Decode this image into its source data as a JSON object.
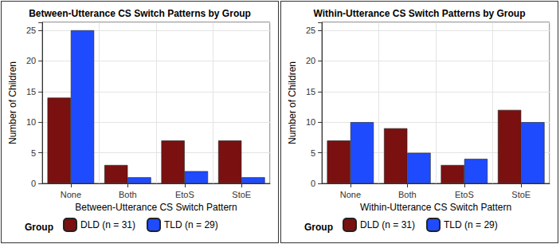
{
  "chart_data": [
    {
      "type": "bar",
      "title": "Between-Utterance CS Switch Patterns by Group",
      "x_label": "Between-Utterance CS Switch Pattern",
      "y_label": "Number of Children",
      "categories": [
        "None",
        "Both",
        "EtoS",
        "StoE"
      ],
      "series": [
        {
          "name": "DLD (n = 31)",
          "color": "#7a1010",
          "values": [
            14,
            3,
            7,
            7
          ]
        },
        {
          "name": "TLD (n = 29)",
          "color": "#1f4bff",
          "values": [
            25,
            1,
            2,
            1
          ]
        }
      ],
      "ylim": [
        0,
        26.3
      ],
      "yticks": [
        0,
        5,
        10,
        15,
        20,
        25
      ],
      "grid": true,
      "legend": "bottom",
      "legend_title": "Group"
    },
    {
      "type": "bar",
      "title": "Within-Utterance CS Switch Patterns by Group",
      "x_label": "Within-Utterance CS Switch Pattern",
      "y_label": "Number of Children",
      "categories": [
        "None",
        "Both",
        "EtoS",
        "StoE"
      ],
      "series": [
        {
          "name": "DLD (n = 31)",
          "color": "#7a1010",
          "values": [
            7,
            9,
            3,
            12
          ]
        },
        {
          "name": "TLD (n = 29)",
          "color": "#1f4bff",
          "values": [
            10,
            5,
            4,
            10
          ]
        }
      ],
      "ylim": [
        0,
        26.3
      ],
      "yticks": [
        0,
        5,
        10,
        15,
        20,
        25
      ],
      "grid": true,
      "legend": "bottom",
      "legend_title": "Group"
    }
  ]
}
